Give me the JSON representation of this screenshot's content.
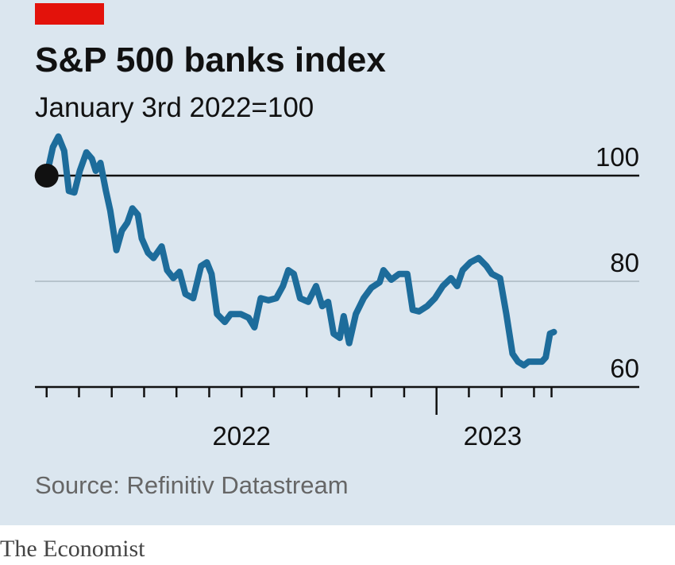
{
  "chart_data": {
    "type": "line",
    "title": "S&P 500 banks index",
    "subtitle": "January 3rd 2022=100",
    "source": "Source: Refinitiv Datastream",
    "color": "#1d6c9b",
    "x": [
      2022.0,
      2022.016,
      2022.03,
      2022.045,
      2022.057,
      2022.071,
      2022.085,
      2022.102,
      2022.116,
      2022.126,
      2022.138,
      2022.152,
      2022.163,
      2022.179,
      2022.193,
      2022.207,
      2022.22,
      2022.234,
      2022.244,
      2022.26,
      2022.274,
      2022.295,
      2022.309,
      2022.325,
      2022.341,
      2022.356,
      2022.376,
      2022.396,
      2022.411,
      2022.423,
      2022.437,
      2022.457,
      2022.472,
      2022.498,
      2022.518,
      2022.533,
      2022.549,
      2022.569,
      2022.589,
      2022.606,
      2022.62,
      2022.634,
      2022.65,
      2022.671,
      2022.691,
      2022.707,
      2022.722,
      2022.736,
      2022.752,
      2022.762,
      2022.776,
      2022.793,
      2022.813,
      2022.833,
      2022.854,
      2022.864,
      2022.884,
      2022.904,
      2022.925,
      2022.939,
      2022.955,
      2022.976,
      2022.996,
      2023.016,
      2023.037,
      2023.053,
      2023.067,
      2023.087,
      2023.108,
      2023.128,
      2023.142,
      2023.163,
      2023.179,
      2023.195,
      2023.209,
      2023.224,
      2023.236,
      2023.25,
      2023.27,
      2023.28,
      2023.291,
      2023.301
    ],
    "values": [
      100.0,
      105.4,
      107.4,
      104.7,
      97.1,
      96.8,
      100.9,
      104.4,
      103.2,
      100.9,
      102.4,
      97.1,
      93.4,
      85.9,
      89.6,
      91.1,
      93.8,
      92.6,
      88.1,
      85.4,
      84.4,
      86.6,
      82.1,
      80.6,
      81.8,
      77.6,
      76.8,
      82.9,
      83.6,
      81.4,
      73.8,
      72.3,
      73.8,
      73.8,
      73.1,
      71.3,
      76.8,
      76.4,
      76.8,
      79.1,
      82.1,
      81.4,
      76.8,
      76.1,
      79.1,
      75.3,
      76.1,
      70.1,
      69.3,
      73.4,
      68.3,
      73.8,
      76.8,
      78.8,
      79.8,
      82.1,
      80.3,
      81.4,
      81.4,
      74.6,
      74.3,
      75.3,
      76.8,
      79.1,
      80.6,
      79.1,
      82.1,
      83.6,
      84.4,
      82.9,
      81.4,
      80.6,
      73.8,
      66.3,
      64.8,
      64.1,
      64.8,
      64.8,
      64.8,
      65.6,
      70.1,
      70.4
    ],
    "ylim": [
      60,
      110
    ],
    "yticks": [
      60,
      80,
      100
    ],
    "reference_line": 100,
    "xlim": [
      2021.97,
      2023.52
    ],
    "xticks": [
      {
        "value": 2022.5,
        "label": "2022"
      },
      {
        "value": 2023.144,
        "label": "2023"
      }
    ],
    "xmajorticks": [
      2023
    ],
    "xminorticks": [
      2022,
      2022.083,
      2022.167,
      2022.25,
      2022.333,
      2022.417,
      2022.5,
      2022.583,
      2022.667,
      2022.75,
      2022.833,
      2022.917,
      2023.083,
      2023.167,
      2023.25,
      2023.295
    ],
    "grid": true
  },
  "brand": "The Economist"
}
